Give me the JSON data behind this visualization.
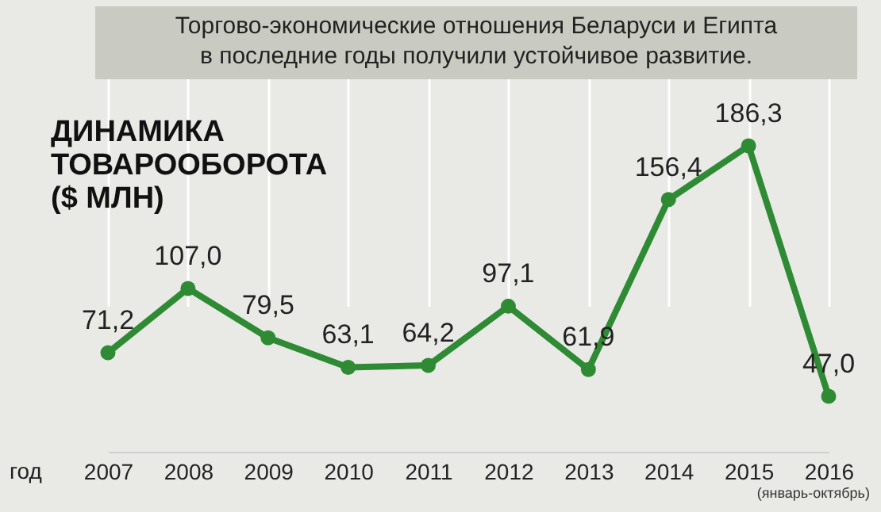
{
  "chart_data": {
    "type": "line",
    "title": "ДИНАМИКА\nТОВАРООБОРОТА\n($ МЛН)",
    "subtitle": "Торгово-экономические отношения Беларуси и Египта\nв последние годы получили устойчивое развитие.",
    "xlabel": "год",
    "categories": [
      "2007",
      "2008",
      "2009",
      "2010",
      "2011",
      "2012",
      "2013",
      "2014",
      "2015",
      "2016"
    ],
    "series": [
      {
        "color": "#2e8b34",
        "values": [
          71.2,
          107.0,
          79.5,
          63.1,
          64.2,
          97.1,
          61.9,
          156.4,
          186.3,
          47.0
        ],
        "value_labels": [
          "71,2",
          "107,0",
          "79,5",
          "63,1",
          "64,2",
          "97,1",
          "61,9",
          "156,4",
          "186,3",
          "47,0"
        ]
      }
    ],
    "annotations": [
      "(январь-октябрь)"
    ],
    "marker": "circle",
    "grid": "x"
  }
}
